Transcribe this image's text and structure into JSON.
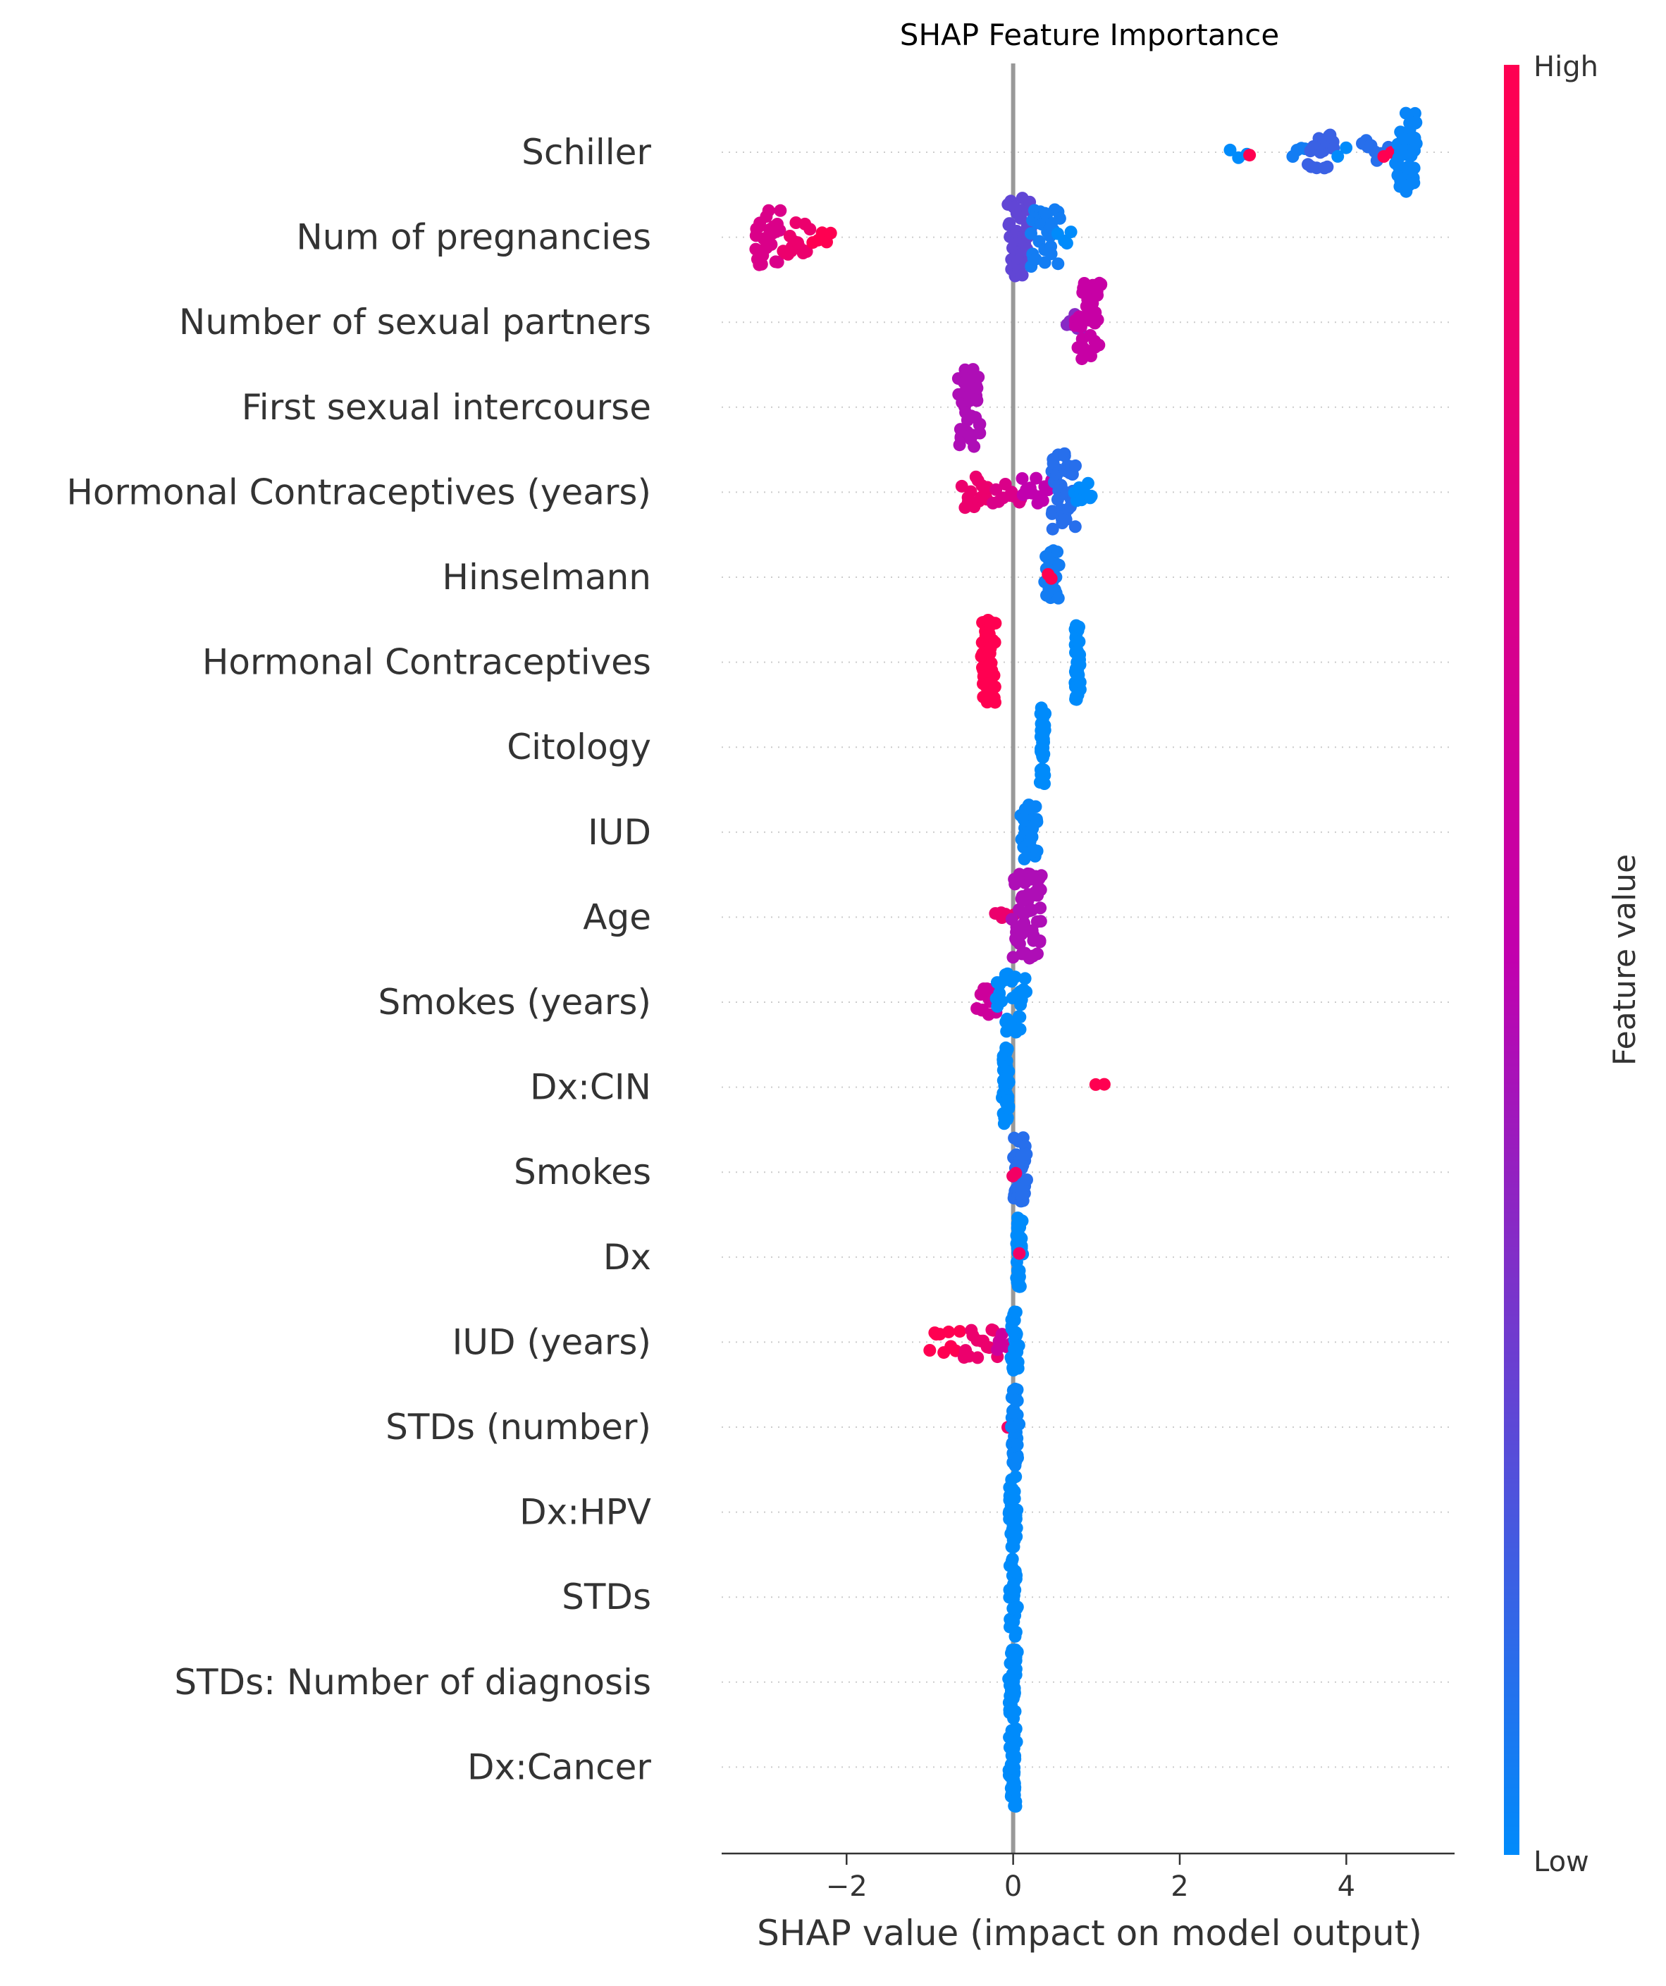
{
  "chart_data": {
    "type": "scatter",
    "subtype": "shap-beeswarm",
    "title": "SHAP Feature Importance",
    "xlabel": "SHAP value (impact on model output)",
    "xlim": [
      -3.5,
      5.3
    ],
    "xticks": [
      -2,
      0,
      2,
      4
    ],
    "xtick_labels": [
      "−2",
      "0",
      "2",
      "4"
    ],
    "zero_line": 0,
    "grid": false,
    "colorbar": {
      "label": "Feature value",
      "high_label": "High",
      "low_label": "Low",
      "high_color": "#ff0051",
      "mid_color": "#c100ae",
      "low_color": "#008bfb"
    },
    "features": [
      {
        "name": "Schiller",
        "clusters": [
          {
            "min": 2.6,
            "max": 2.8,
            "n": 3,
            "v": 0.0
          },
          {
            "min": 2.85,
            "max": 2.85,
            "n": 1,
            "v": 1.0
          },
          {
            "min": 3.35,
            "max": 3.5,
            "n": 4,
            "v": 0.05
          },
          {
            "min": 3.55,
            "max": 3.85,
            "n": 20,
            "v": 0.15
          },
          {
            "min": 3.9,
            "max": 4.0,
            "n": 2,
            "v": 0.0
          },
          {
            "min": 4.2,
            "max": 4.5,
            "n": 10,
            "v": 0.1
          },
          {
            "min": 4.45,
            "max": 4.55,
            "n": 2,
            "v": 1.0
          },
          {
            "min": 4.6,
            "max": 4.85,
            "n": 40,
            "v": 0.02
          }
        ]
      },
      {
        "name": "Num of pregnancies",
        "clusters": [
          {
            "min": -3.1,
            "max": -2.8,
            "n": 28,
            "v": 0.7
          },
          {
            "min": -2.75,
            "max": -2.45,
            "n": 16,
            "v": 0.85
          },
          {
            "min": -2.4,
            "max": -2.2,
            "n": 5,
            "v": 1.0
          },
          {
            "min": -0.05,
            "max": 0.2,
            "n": 40,
            "v": 0.25
          },
          {
            "min": 0.2,
            "max": 0.55,
            "n": 30,
            "v": 0.05
          },
          {
            "min": 0.55,
            "max": 0.7,
            "n": 4,
            "v": 0.0
          }
        ]
      },
      {
        "name": "Number of sexual partners",
        "clusters": [
          {
            "min": 0.65,
            "max": 0.8,
            "n": 6,
            "v": 0.35
          },
          {
            "min": 0.75,
            "max": 1.05,
            "n": 40,
            "v": 0.55
          }
        ]
      },
      {
        "name": "First sexual intercourse",
        "clusters": [
          {
            "min": -0.65,
            "max": -0.4,
            "n": 40,
            "v": 0.45
          }
        ]
      },
      {
        "name": "Hormonal Contraceptives (years)",
        "clusters": [
          {
            "min": -0.6,
            "max": -0.3,
            "n": 14,
            "v": 0.85
          },
          {
            "min": -0.25,
            "max": 0.1,
            "n": 10,
            "v": 0.7
          },
          {
            "min": 0.1,
            "max": 0.45,
            "n": 14,
            "v": 0.5
          },
          {
            "min": 0.45,
            "max": 0.75,
            "n": 40,
            "v": 0.1
          },
          {
            "min": 0.75,
            "max": 0.95,
            "n": 8,
            "v": 0.0
          }
        ]
      },
      {
        "name": "Hinselmann",
        "clusters": [
          {
            "min": 0.38,
            "max": 0.55,
            "n": 26,
            "v": 0.05
          },
          {
            "min": 0.42,
            "max": 0.46,
            "n": 2,
            "v": 1.0
          }
        ]
      },
      {
        "name": "Hormonal Contraceptives",
        "clusters": [
          {
            "min": -0.38,
            "max": -0.22,
            "n": 50,
            "v": 1.0
          },
          {
            "min": 0.74,
            "max": 0.8,
            "n": 40,
            "v": 0.0
          }
        ]
      },
      {
        "name": "Citology",
        "clusters": [
          {
            "min": 0.33,
            "max": 0.38,
            "n": 40,
            "v": 0.0
          }
        ]
      },
      {
        "name": "IUD",
        "clusters": [
          {
            "min": 0.1,
            "max": 0.28,
            "n": 30,
            "v": 0.02
          }
        ]
      },
      {
        "name": "Age",
        "clusters": [
          {
            "min": -0.2,
            "max": 0.0,
            "n": 6,
            "v": 0.85
          },
          {
            "min": 0.0,
            "max": 0.35,
            "n": 50,
            "v": 0.45
          }
        ]
      },
      {
        "name": "Smokes (years)",
        "clusters": [
          {
            "min": -0.42,
            "max": -0.2,
            "n": 12,
            "v": 0.6
          },
          {
            "min": -0.2,
            "max": 0.15,
            "n": 30,
            "v": 0.0
          }
        ]
      },
      {
        "name": "Dx:CIN",
        "clusters": [
          {
            "min": -0.12,
            "max": -0.06,
            "n": 40,
            "v": 0.0
          },
          {
            "min": 1.0,
            "max": 1.08,
            "n": 2,
            "v": 1.0
          }
        ]
      },
      {
        "name": "Smokes",
        "clusters": [
          {
            "min": 0.0,
            "max": 0.16,
            "n": 36,
            "v": 0.1
          },
          {
            "min": 0.0,
            "max": 0.04,
            "n": 2,
            "v": 0.9
          }
        ]
      },
      {
        "name": "Dx",
        "clusters": [
          {
            "min": 0.04,
            "max": 0.1,
            "n": 40,
            "v": 0.0
          },
          {
            "min": 0.06,
            "max": 0.08,
            "n": 1,
            "v": 0.9
          }
        ]
      },
      {
        "name": "IUD (years)",
        "clusters": [
          {
            "min": -1.0,
            "max": -0.65,
            "n": 9,
            "v": 1.0
          },
          {
            "min": -0.6,
            "max": -0.2,
            "n": 14,
            "v": 0.85
          },
          {
            "min": -0.2,
            "max": -0.02,
            "n": 6,
            "v": 0.6
          },
          {
            "min": -0.02,
            "max": 0.06,
            "n": 30,
            "v": 0.0
          }
        ]
      },
      {
        "name": "STDs (number)",
        "clusters": [
          {
            "min": -0.1,
            "max": -0.06,
            "n": 1,
            "v": 0.9
          },
          {
            "min": -0.02,
            "max": 0.06,
            "n": 40,
            "v": 0.02
          }
        ]
      },
      {
        "name": "Dx:HPV",
        "clusters": [
          {
            "min": -0.04,
            "max": 0.04,
            "n": 40,
            "v": 0.0
          }
        ]
      },
      {
        "name": "STDs",
        "clusters": [
          {
            "min": -0.04,
            "max": 0.04,
            "n": 40,
            "v": 0.0
          }
        ]
      },
      {
        "name": "STDs: Number of diagnosis",
        "clusters": [
          {
            "min": -0.04,
            "max": 0.04,
            "n": 40,
            "v": 0.0
          }
        ]
      },
      {
        "name": "Dx:Cancer",
        "clusters": [
          {
            "min": -0.04,
            "max": 0.04,
            "n": 40,
            "v": 0.0
          }
        ]
      }
    ]
  }
}
